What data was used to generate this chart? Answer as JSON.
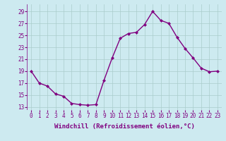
{
  "x": [
    0,
    1,
    2,
    3,
    4,
    5,
    6,
    7,
    8,
    9,
    10,
    11,
    12,
    13,
    14,
    15,
    16,
    17,
    18,
    19,
    20,
    21,
    22,
    23
  ],
  "y": [
    19,
    17,
    16.5,
    15.2,
    14.8,
    13.6,
    13.4,
    13.3,
    13.4,
    17.5,
    21.2,
    24.5,
    25.3,
    25.5,
    26.8,
    29.0,
    27.5,
    27.0,
    24.7,
    22.8,
    21.2,
    19.5,
    18.9,
    19.0
  ],
  "line_color": "#800080",
  "marker": "D",
  "marker_size": 2,
  "bg_color": "#cdeaf0",
  "grid_color": "#aacccc",
  "xlabel": "Windchill (Refroidissement éolien,°C)",
  "xlabel_fontsize": 6.5,
  "ylabel_ticks": [
    13,
    15,
    17,
    19,
    21,
    23,
    25,
    27,
    29
  ],
  "xticks": [
    0,
    1,
    2,
    3,
    4,
    5,
    6,
    7,
    8,
    9,
    10,
    11,
    12,
    13,
    14,
    15,
    16,
    17,
    18,
    19,
    20,
    21,
    22,
    23
  ],
  "ylim": [
    12.5,
    30.2
  ],
  "xlim": [
    -0.5,
    23.5
  ],
  "tick_fontsize": 5.5,
  "line_width": 1.0
}
